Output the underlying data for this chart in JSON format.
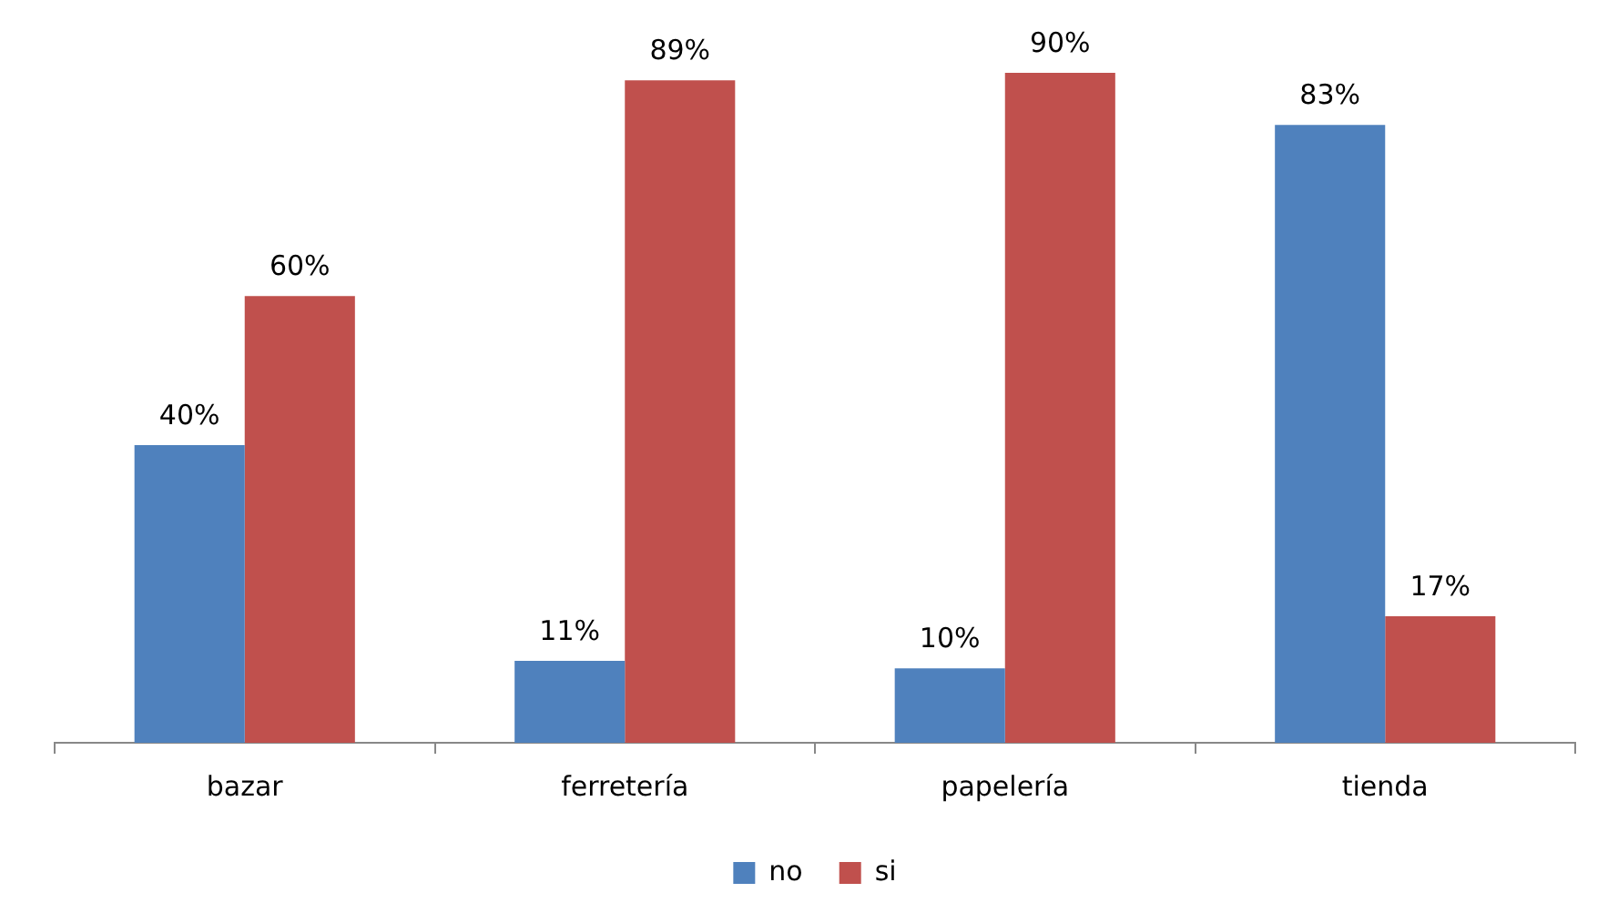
{
  "chart_data": {
    "type": "bar",
    "categories": [
      "bazar",
      "ferretería",
      "papelería",
      "tienda"
    ],
    "series": [
      {
        "name": "no",
        "color": "#4f81bd",
        "values": [
          40,
          11,
          10,
          83
        ],
        "value_labels": [
          "40%",
          "11%",
          "10%",
          "83%"
        ]
      },
      {
        "name": "si",
        "color": "#c0504d",
        "values": [
          60,
          89,
          90,
          17
        ],
        "value_labels": [
          "60%",
          "89%",
          "90%",
          "17%"
        ]
      }
    ],
    "tick_labels": "x",
    "grid": false,
    "legend": "bottom"
  }
}
